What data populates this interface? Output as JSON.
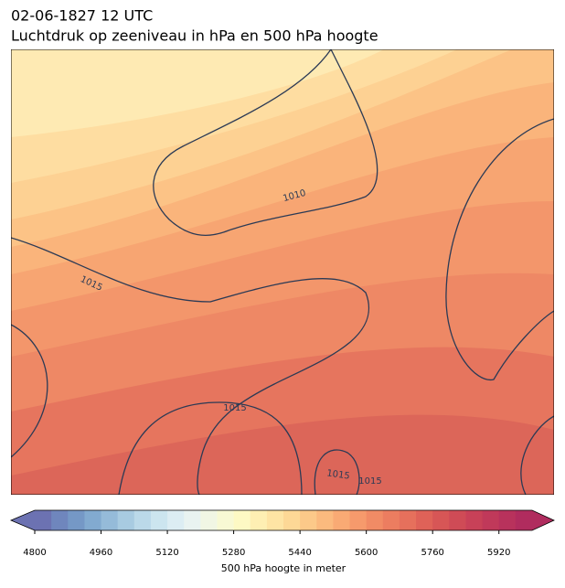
{
  "title_line1": "02-06-1827 12 UTC",
  "title_line2": "Luchtdruk op zeeniveau in hPa en 500 hPa hoogte",
  "isobar_labels": [
    1010,
    1015,
    1015,
    1015,
    1015
  ],
  "colorbar": {
    "label": "500 hPa hoogte in meter",
    "lim": [
      4800,
      6000
    ],
    "ticks": [
      4800,
      4960,
      5120,
      5280,
      5440,
      5600,
      5760,
      5920
    ],
    "colors": [
      "#6c72b2",
      "#6f86bd",
      "#7598c6",
      "#82aad0",
      "#95bbd9",
      "#a8cbe1",
      "#bbd9e9",
      "#cce5ef",
      "#dcedf3",
      "#e9f3f1",
      "#f1f6e4",
      "#f8f9d4",
      "#fdf9c4",
      "#feefb3",
      "#fee4a4",
      "#fdd896",
      "#fcc989",
      "#fbba7e",
      "#f9aa74",
      "#f69a6c",
      "#f18b65",
      "#ec7d60",
      "#e6705c",
      "#df6258",
      "#d75656",
      "#cf4b56",
      "#c84158",
      "#c0395a",
      "#b8325c",
      "#b02c5e"
    ]
  }
}
